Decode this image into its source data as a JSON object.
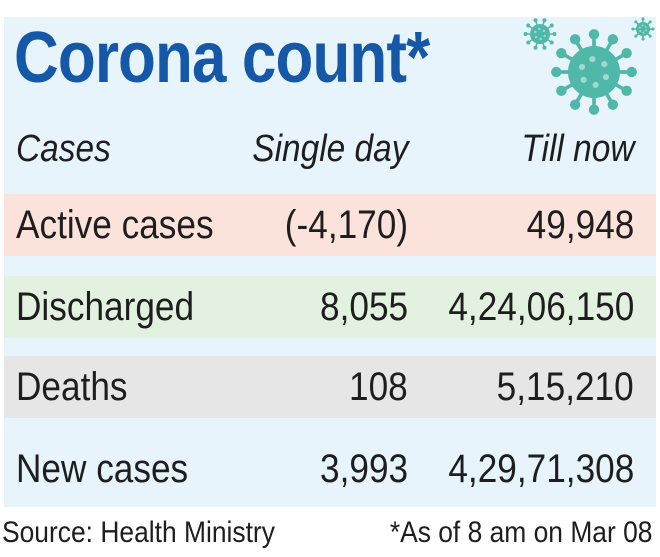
{
  "title": "Corona count*",
  "colors": {
    "title": "#1558a8",
    "panel_bg": "#e8f4fb",
    "active_row_bg": "#fbe3dc",
    "discharged_row_bg": "#e3f1e0",
    "deaths_row_bg": "#e6e6e6",
    "virus": "#4fb8a8"
  },
  "icons": [
    "virus-icon-small",
    "virus-icon-large",
    "virus-icon-tiny"
  ],
  "table": {
    "headers": [
      "Cases",
      "Single day",
      "Till now"
    ],
    "rows": [
      {
        "label": "Active cases",
        "single_day": "(-4,170)",
        "till_now": "49,948"
      },
      {
        "label": "Discharged",
        "single_day": "8,055",
        "till_now": "4,24,06,150"
      },
      {
        "label": "Deaths",
        "single_day": "108",
        "till_now": "5,15,210"
      },
      {
        "label": "New cases",
        "single_day": "3,993",
        "till_now": "4,29,71,308"
      }
    ]
  },
  "footer": {
    "source": "Source: Health Ministry",
    "note": "*As of 8 am on Mar 08"
  }
}
